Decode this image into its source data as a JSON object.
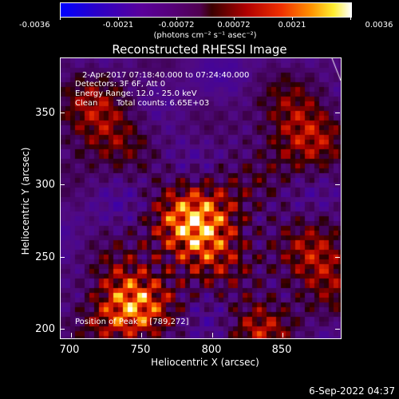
{
  "colorbar": {
    "ticks": [
      "-0.0036",
      "-0.0021",
      "-0.00072",
      "0.00072",
      "0.0021",
      "0.0036"
    ],
    "units": "(photons cm⁻² s⁻¹ asec⁻²)"
  },
  "title": "Reconstructed RHESSI Image",
  "info": {
    "time": "2-Apr-2017 07:18:40.000 to 07:24:40.000",
    "detectors": "Detectors: 3F 6F, Att 0",
    "energy": "Energy Range: 12.0 - 25.0 keV",
    "method": "Clean",
    "counts": "Total counts: 6.65E+03",
    "peak": "Position of Peak = [789,272]"
  },
  "axes": {
    "xlabel": "Heliocentric X (arcsec)",
    "ylabel": "Heliocentric Y (arcsec)",
    "xticks": [
      "700",
      "750",
      "800",
      "850"
    ],
    "yticks": [
      "350",
      "300",
      "250",
      "200"
    ]
  },
  "timestamp": "6-Sep-2022 04:37",
  "chart_data": {
    "type": "heatmap",
    "title": "Reconstructed RHESSI Image",
    "xlabel": "Heliocentric X (arcsec)",
    "ylabel": "Heliocentric Y (arcsec)",
    "xlim": [
      692,
      887
    ],
    "ylim": [
      195,
      390
    ],
    "color_range": [
      -0.0036,
      0.0036
    ],
    "colorbar_ticks": [
      -0.0036,
      -0.0021,
      -0.00072,
      0.00072,
      0.0021,
      0.0036
    ],
    "peak_position": [
      789,
      272
    ],
    "sources": [
      {
        "x": 789,
        "y": 272,
        "intensity": 1.0,
        "sigma": 22
      },
      {
        "x": 738,
        "y": 218,
        "intensity": 0.9,
        "sigma": 20
      },
      {
        "x": 858,
        "y": 340,
        "intensity": 0.6,
        "sigma": 22
      },
      {
        "x": 718,
        "y": 345,
        "intensity": 0.55,
        "sigma": 22
      },
      {
        "x": 873,
        "y": 245,
        "intensity": 0.55,
        "sigma": 22
      },
      {
        "x": 828,
        "y": 200,
        "intensity": 0.5,
        "sigma": 16
      }
    ]
  }
}
